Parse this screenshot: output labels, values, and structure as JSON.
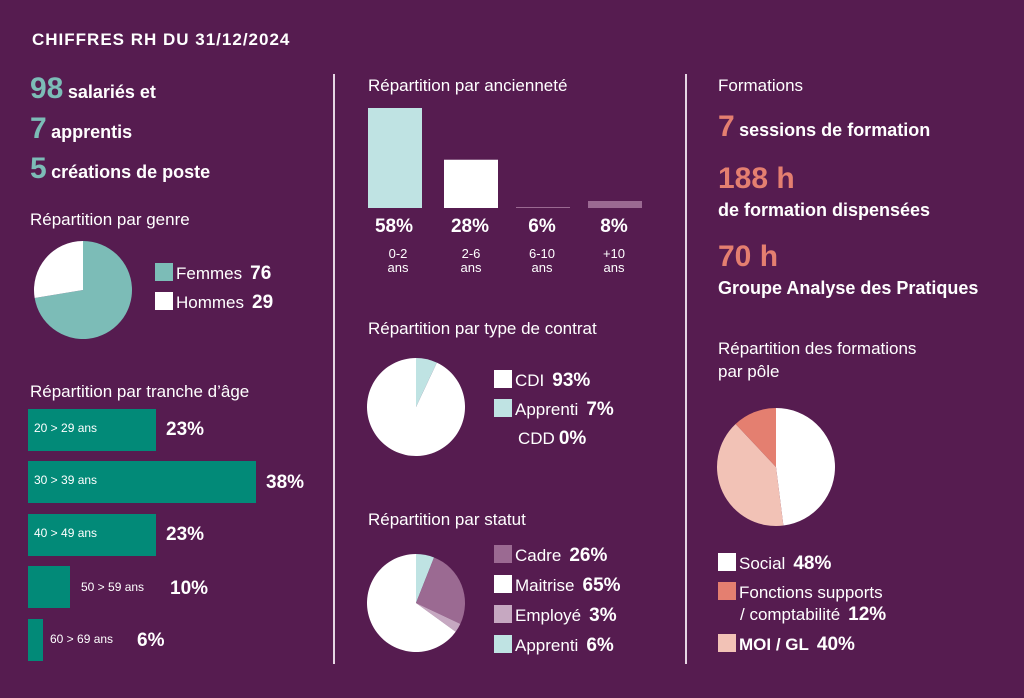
{
  "title": "CHIFFRES RH DU 31/12/2024",
  "kpis": [
    {
      "value": "98",
      "label": "salariés et"
    },
    {
      "value": "7",
      "label": "apprentis"
    },
    {
      "value": "5",
      "label": "créations de poste"
    }
  ],
  "genre": {
    "title": "Répartition par genre",
    "legend": [
      {
        "label": "Femmes",
        "value": "76",
        "color": "#7cbcb7"
      },
      {
        "label": "Hommes",
        "value": "29",
        "color": "#ffffff"
      }
    ]
  },
  "age": {
    "title": "Répartition par tranche d’âge",
    "rows": [
      {
        "label": "20 > 29 ans",
        "pct": "23%"
      },
      {
        "label": "30 > 39 ans",
        "pct": "38%"
      },
      {
        "label": "40 > 49 ans",
        "pct": "23%"
      },
      {
        "label": "50 > 59 ans",
        "pct": "10%"
      },
      {
        "label": "60 > 69 ans",
        "pct": "6%"
      }
    ]
  },
  "anciennete": {
    "title": "Répartition par ancienneté",
    "pcts": [
      "58%",
      "28%",
      "6%",
      "8%"
    ],
    "cats": [
      [
        "0-2",
        "ans"
      ],
      [
        "2-6",
        "ans"
      ],
      [
        "6-10",
        "ans"
      ],
      [
        "+10",
        "ans"
      ]
    ]
  },
  "contrat": {
    "title": "Répartition par type de contrat",
    "legend": [
      {
        "label": "CDI",
        "value": "93%",
        "color": "#ffffff"
      },
      {
        "label": "Apprenti",
        "value": "7%",
        "color": "#bfe3e3"
      },
      {
        "label": "CDD",
        "value": "0%",
        "color": ""
      }
    ]
  },
  "statut": {
    "title": "Répartition par statut",
    "legend": [
      {
        "label": "Cadre",
        "value": "26%",
        "color": "#9b6a92"
      },
      {
        "label": "Maitrise",
        "value": "65%",
        "color": "#ffffff"
      },
      {
        "label": "Employé",
        "value": "3%",
        "color": "#c6a8c1"
      },
      {
        "label": "Apprenti",
        "value": "6%",
        "color": "#bfe3e3"
      }
    ]
  },
  "formations": {
    "title": "Formations",
    "kpis": [
      {
        "value": "7",
        "label": "sessions de formation"
      },
      {
        "value": "188 h",
        "label": "de formation dispensées"
      },
      {
        "value": "70 h",
        "label": "Groupe Analyse des Pratiques"
      }
    ],
    "pole_title_1": "Répartition des formations",
    "pole_title_2": "par pôle",
    "pole_legend": [
      {
        "label": "Social",
        "value": "48%",
        "color": "#ffffff"
      },
      {
        "label": "Fonctions supports",
        "label2": "/ comptabilité",
        "value": "12%",
        "color": "#e47f70"
      },
      {
        "label": "MOI / GL",
        "value": "40%",
        "color": "#f2c2b6"
      }
    ]
  },
  "chart_data": [
    {
      "type": "pie",
      "title": "Répartition par genre",
      "labels": [
        "Femmes",
        "Hommes"
      ],
      "values": [
        76,
        29
      ],
      "colors": [
        "#7cbcb7",
        "#ffffff"
      ]
    },
    {
      "type": "bar",
      "title": "Répartition par tranche d’âge",
      "orientation": "horizontal",
      "categories": [
        "20 > 29 ans",
        "30 > 39 ans",
        "40 > 49 ans",
        "50 > 59 ans",
        "60 > 69 ans"
      ],
      "values": [
        23,
        38,
        23,
        10,
        6
      ]
    },
    {
      "type": "bar",
      "title": "Répartition par ancienneté",
      "categories": [
        "0-2 ans",
        "2-6 ans",
        "6-10 ans",
        "+10 ans"
      ],
      "values": [
        58,
        28,
        6,
        8
      ],
      "colors": [
        "#bfe3e3",
        "#ffffff",
        "#9b6a92",
        "#9b6a92"
      ]
    },
    {
      "type": "pie",
      "title": "Répartition par type de contrat",
      "labels": [
        "CDI",
        "Apprenti",
        "CDD"
      ],
      "values": [
        93,
        7,
        0
      ],
      "colors": [
        "#ffffff",
        "#bfe3e3",
        "#ffffff"
      ]
    },
    {
      "type": "pie",
      "title": "Répartition par statut",
      "labels": [
        "Apprenti",
        "Cadre",
        "Employé",
        "Maitrise"
      ],
      "values": [
        6,
        26,
        3,
        65
      ],
      "colors": [
        "#bfe3e3",
        "#9b6a92",
        "#c6a8c1",
        "#ffffff"
      ]
    },
    {
      "type": "pie",
      "title": "Répartition des formations par pôle",
      "labels": [
        "Social",
        "MOI / GL",
        "Fonctions supports / comptabilité"
      ],
      "values": [
        48,
        40,
        12
      ],
      "colors": [
        "#ffffff",
        "#f2c2b6",
        "#e47f70"
      ]
    }
  ]
}
